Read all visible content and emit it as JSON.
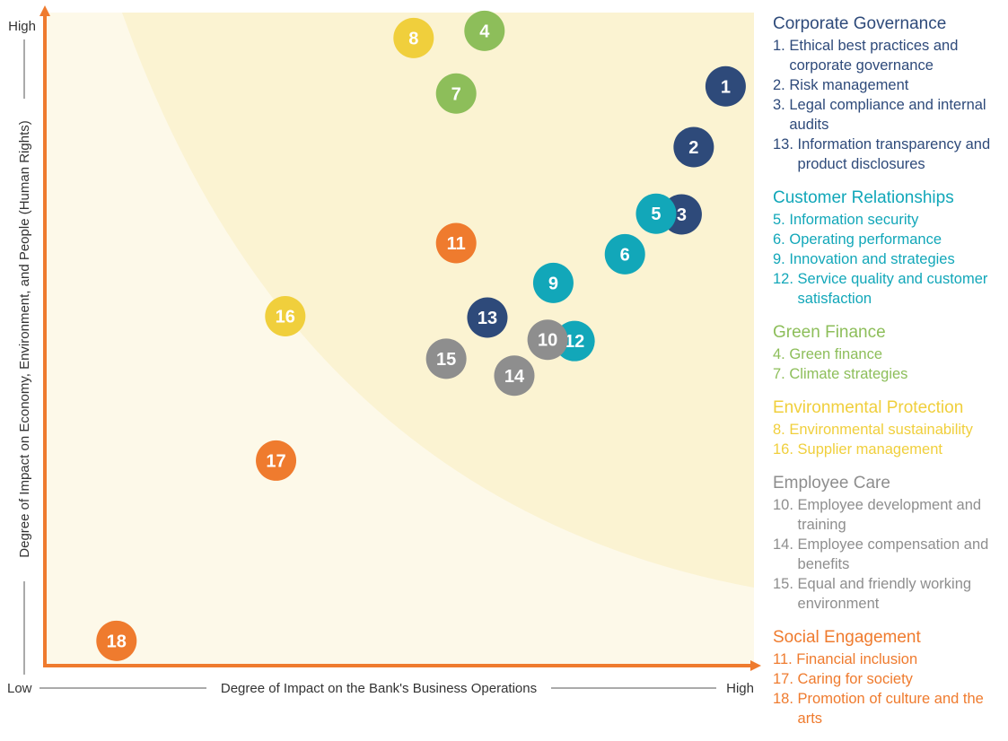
{
  "chart_data": {
    "type": "scatter",
    "xlabel": "Degree of Impact on the Bank's Business Operations",
    "ylabel": "Degree of Impact on Economy, Environment, and People (Human Rights)",
    "x_low": "Low",
    "x_high": "High",
    "y_high": "High",
    "xlim": [
      0,
      100
    ],
    "ylim": [
      0,
      100
    ],
    "points": [
      {
        "label": "1",
        "x": 96.0,
        "y": 88.7,
        "category": "Corporate Governance"
      },
      {
        "label": "2",
        "x": 91.5,
        "y": 79.4,
        "category": "Corporate Governance"
      },
      {
        "label": "3",
        "x": 89.8,
        "y": 69.1,
        "category": "Corporate Governance"
      },
      {
        "label": "13",
        "x": 62.4,
        "y": 53.3,
        "category": "Corporate Governance"
      },
      {
        "label": "5",
        "x": 86.2,
        "y": 69.2,
        "category": "Customer Relationships"
      },
      {
        "label": "6",
        "x": 81.8,
        "y": 63.0,
        "category": "Customer Relationships"
      },
      {
        "label": "9",
        "x": 71.7,
        "y": 58.6,
        "category": "Customer Relationships"
      },
      {
        "label": "12",
        "x": 74.7,
        "y": 49.7,
        "category": "Customer Relationships"
      },
      {
        "label": "4",
        "x": 62.0,
        "y": 97.2,
        "category": "Green Finance"
      },
      {
        "label": "7",
        "x": 58.0,
        "y": 87.6,
        "category": "Green Finance"
      },
      {
        "label": "8",
        "x": 52.0,
        "y": 96.1,
        "category": "Environmental Protection"
      },
      {
        "label": "16",
        "x": 33.9,
        "y": 53.5,
        "category": "Environmental Protection"
      },
      {
        "label": "10",
        "x": 70.9,
        "y": 49.9,
        "category": "Employee Care"
      },
      {
        "label": "14",
        "x": 66.2,
        "y": 44.4,
        "category": "Employee Care"
      },
      {
        "label": "15",
        "x": 56.6,
        "y": 47.0,
        "category": "Employee Care"
      },
      {
        "label": "11",
        "x": 58.0,
        "y": 64.7,
        "category": "Social Engagement"
      },
      {
        "label": "17",
        "x": 32.6,
        "y": 31.4,
        "category": "Social Engagement"
      },
      {
        "label": "18",
        "x": 10.1,
        "y": 3.8,
        "category": "Social Engagement"
      }
    ]
  },
  "legend": [
    {
      "title": "Corporate Governance",
      "color": "#2E4A7A",
      "items": [
        {
          "num": "1. ",
          "text": "Ethical best practices and corporate governance"
        },
        {
          "num": "2. ",
          "text": "Risk management"
        },
        {
          "num": "3. ",
          "text": "Legal compliance and internal audits"
        },
        {
          "num": "13. ",
          "text": "Information transparency and product disclosures"
        }
      ]
    },
    {
      "title": "Customer Relationships",
      "color": "#12A7B9",
      "items": [
        {
          "num": "5. ",
          "text": "Information security"
        },
        {
          "num": "6. ",
          "text": "Operating performance"
        },
        {
          "num": "9. ",
          "text": "Innovation and strategies"
        },
        {
          "num": "12. ",
          "text": "Service quality and customer satisfaction"
        }
      ]
    },
    {
      "title": "Green Finance",
      "color": "#8DBE5A",
      "items": [
        {
          "num": "4. ",
          "text": "Green finance"
        },
        {
          "num": "7. ",
          "text": "Climate strategies"
        }
      ]
    },
    {
      "title": "Environmental Protection",
      "color": "#F0CF3C",
      "items": [
        {
          "num": "8. ",
          "text": "Environmental sustainability"
        },
        {
          "num": "16. ",
          "text": "Supplier management"
        }
      ]
    },
    {
      "title": "Employee Care",
      "color": "#8E8E8E",
      "items": [
        {
          "num": "10. ",
          "text": "Employee development and training"
        },
        {
          "num": "14. ",
          "text": "Employee compensation and benefits"
        },
        {
          "num": "15. ",
          "text": "Equal and friendly working environment"
        }
      ]
    },
    {
      "title": "Social Engagement",
      "color": "#EF7B2E",
      "items": [
        {
          "num": "11. ",
          "text": "Financial inclusion"
        },
        {
          "num": "17. ",
          "text": "Caring for society"
        },
        {
          "num": "18. ",
          "text": "Promotion of culture and the arts"
        }
      ]
    }
  ],
  "colors": {
    "axis": "#EF7B2E",
    "background_light": "#FDF9E9",
    "background_dark": "#FBF3D2"
  }
}
